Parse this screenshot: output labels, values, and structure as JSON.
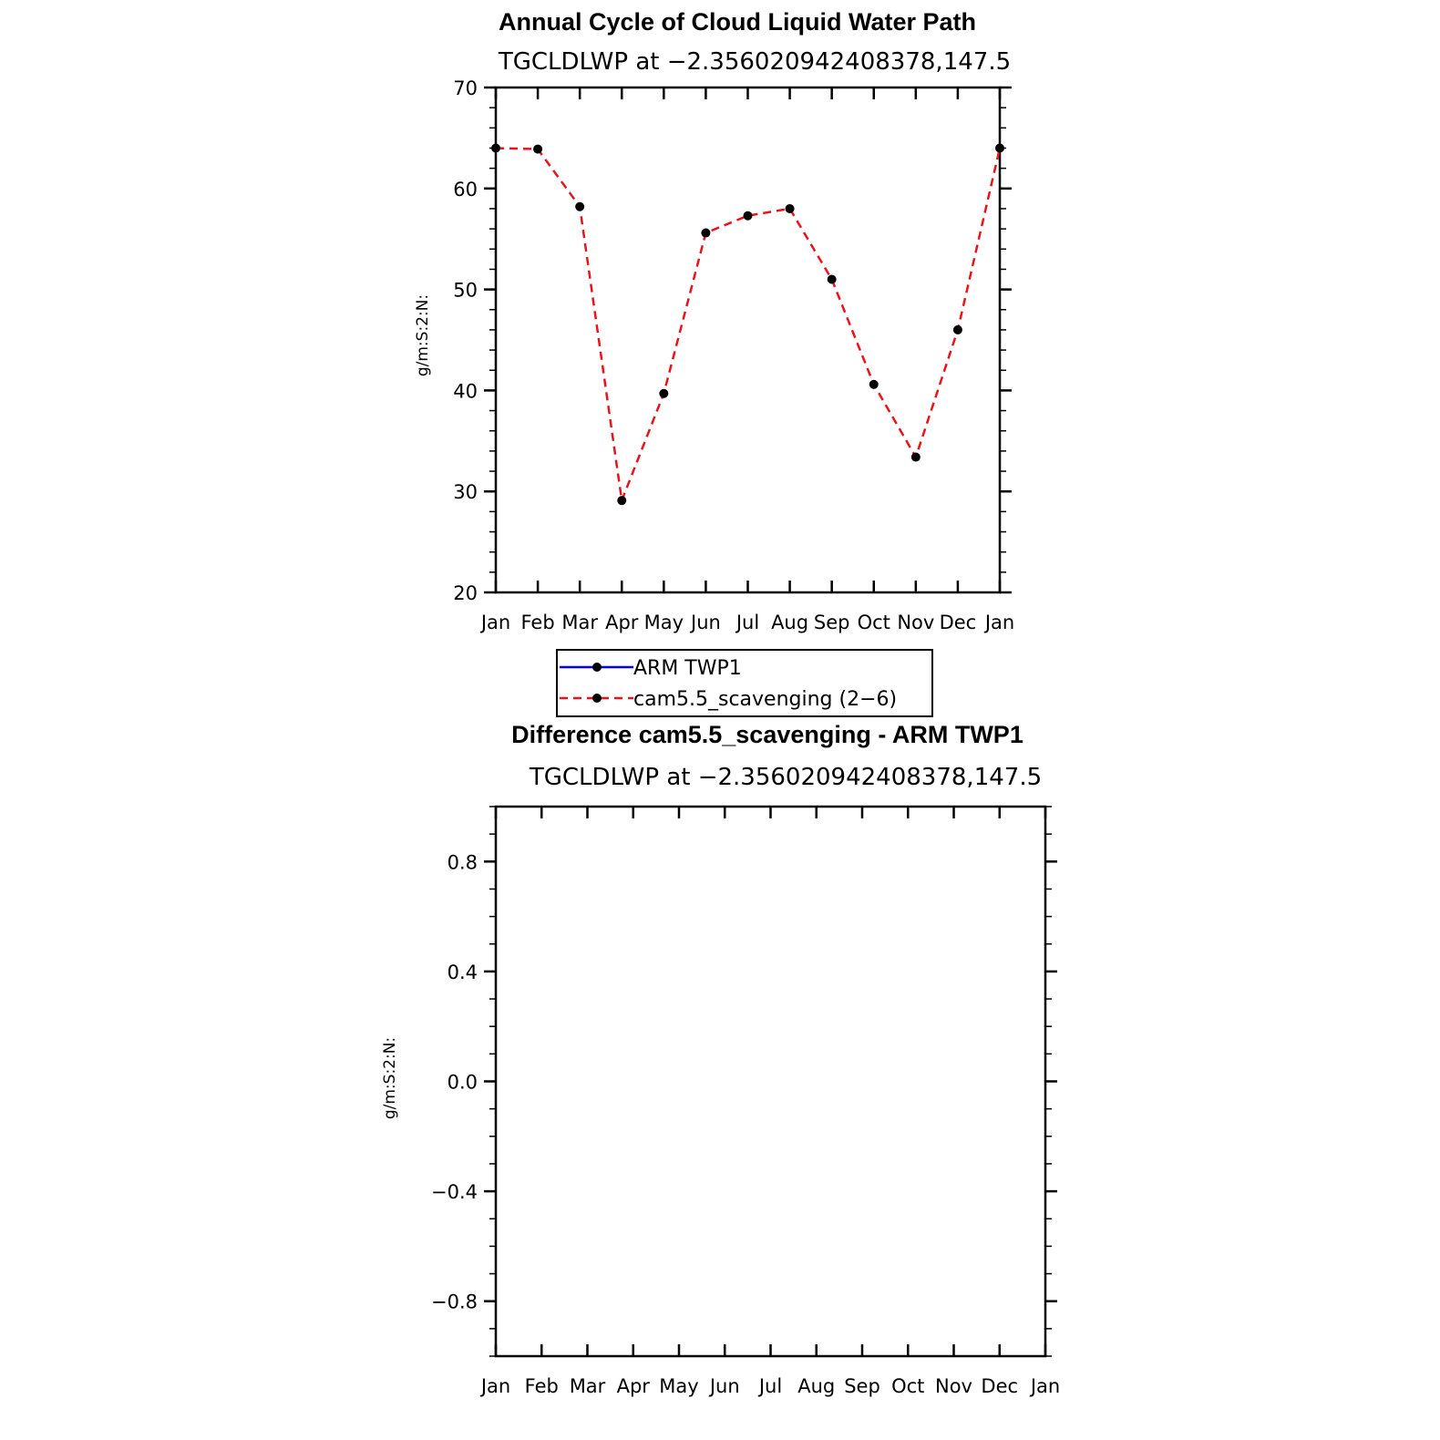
{
  "chart_data": [
    {
      "type": "line",
      "title": "Annual Cycle of Cloud Liquid Water Path",
      "subtitle": "TGCLDLWP  at  −2.356020942408378,147.5",
      "ylabel": "g/m:S:2:N:",
      "xlabel": "",
      "categories": [
        "Jan",
        "Feb",
        "Mar",
        "Apr",
        "May",
        "Jun",
        "Jul",
        "Aug",
        "Sep",
        "Oct",
        "Nov",
        "Dec",
        "Jan"
      ],
      "ylim": [
        20,
        70
      ],
      "yticks": [
        20,
        30,
        40,
        50,
        60,
        70
      ],
      "ytick_labels": [
        "20",
        "30",
        "40",
        "50",
        "60",
        "70"
      ],
      "y_minor_step": 2,
      "series": [
        {
          "name": "cam5.5_scavenging (2−6)",
          "color": "#e8141c",
          "dash": "dashed",
          "marker": "filled-circle",
          "values": [
            64.0,
            63.9,
            58.2,
            29.1,
            39.7,
            55.6,
            57.3,
            58.0,
            51.0,
            40.6,
            33.4,
            46.0,
            64.0
          ]
        }
      ],
      "legend": {
        "placement": "below",
        "entries": [
          {
            "label": "ARM  TWP1",
            "color": "#0000ff",
            "dash": "solid"
          },
          {
            "label": "cam5.5_scavenging (2−6)",
            "color": "#e8141c",
            "dash": "dashed"
          }
        ]
      }
    },
    {
      "type": "line",
      "title": "Difference cam5.5_scavenging - ARM TWP1",
      "subtitle": "TGCLDLWP  at  −2.356020942408378,147.5",
      "ylabel": "g/m:S:2:N:",
      "xlabel": "",
      "categories": [
        "Jan",
        "Feb",
        "Mar",
        "Apr",
        "May",
        "Jun",
        "Jul",
        "Aug",
        "Sep",
        "Oct",
        "Nov",
        "Dec",
        "Jan"
      ],
      "ylim": [
        -1.0,
        1.0
      ],
      "yticks": [
        -0.8,
        -0.4,
        0.0,
        0.4,
        0.8
      ],
      "ytick_labels": [
        "−0.8",
        "−0.4",
        "0.0",
        "0.4",
        "0.8"
      ],
      "y_minor_step": 0.1,
      "series": []
    }
  ]
}
